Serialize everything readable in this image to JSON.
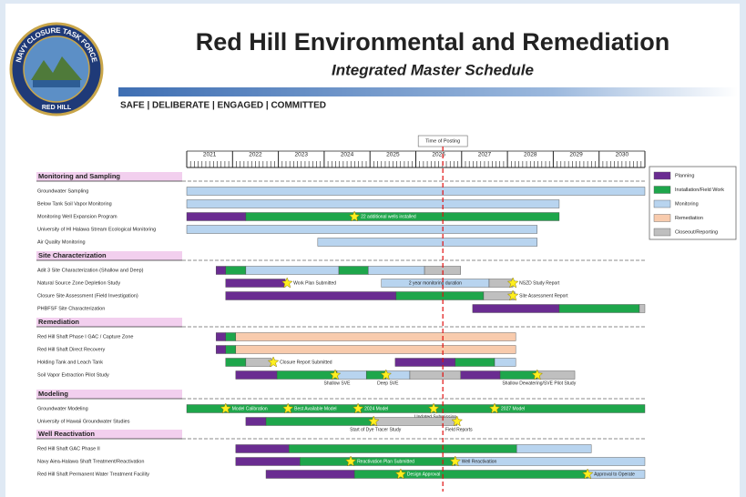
{
  "header": {
    "title": "Red Hill Environmental and Remediation",
    "subtitle": "Integrated Master Schedule",
    "tagline": "SAFE | DELIBERATE | ENGAGED | COMMITTED",
    "logo_top": "NAVY CLOSURE TASK FORCE",
    "logo_bottom": "RED HILL"
  },
  "timeline": {
    "years": [
      2021,
      2022,
      2023,
      2024,
      2025,
      2026,
      2027,
      2028,
      2029,
      2030
    ],
    "range": [
      2021,
      2031
    ],
    "time_of_posting": {
      "label": "Time of Posting",
      "value": 2026.59
    }
  },
  "legend": [
    {
      "label": "Planning",
      "color": "#6a2c91"
    },
    {
      "label": "Installation/Field Work",
      "color": "#1ea64b"
    },
    {
      "label": "Monitoring",
      "color": "#b8d4ef"
    },
    {
      "label": "Remediation",
      "color": "#f8cbad"
    },
    {
      "label": "Closeout/Reporting",
      "color": "#bfbfbf"
    }
  ],
  "sections": [
    {
      "title": "Monitoring and Sampling",
      "rows": [
        {
          "label": "Groundwater Sampling",
          "bars": [
            {
              "type": "Monitoring",
              "start": 2021.0,
              "end": 2031.0
            }
          ],
          "milestones": []
        },
        {
          "label": "Below Tank Soil Vapor Monitoring",
          "bars": [
            {
              "type": "Monitoring",
              "start": 2021.0,
              "end": 2029.13
            }
          ],
          "milestones": []
        },
        {
          "label": "Monitoring Well Expansion Program",
          "bars": [
            {
              "type": "Planning",
              "start": 2021.0,
              "end": 2022.29
            },
            {
              "type": "Installation/Field Work",
              "start": 2022.29,
              "end": 2029.13
            }
          ],
          "milestones": [
            {
              "t": 2024.66,
              "label": "22 additional wells installed"
            }
          ]
        },
        {
          "label": "University of HI Halawa Stream Ecological Monitoring",
          "bars": [
            {
              "type": "Monitoring",
              "start": 2021.0,
              "end": 2028.65
            }
          ],
          "milestones": []
        },
        {
          "label": "Air Quality Monitoring",
          "bars": [
            {
              "type": "Monitoring",
              "start": 2023.86,
              "end": 2028.65
            }
          ],
          "milestones": []
        }
      ]
    },
    {
      "title": "Site Characterization",
      "rows": [
        {
          "label": "Adit 3 Site Characterization (Shallow and Deep)",
          "bars": [
            {
              "type": "Planning",
              "start": 2021.64,
              "end": 2021.85
            },
            {
              "type": "Installation/Field Work",
              "start": 2021.85,
              "end": 2022.29
            },
            {
              "type": "Monitoring",
              "start": 2022.29,
              "end": 2024.32
            },
            {
              "type": "Installation/Field Work",
              "start": 2024.32,
              "end": 2024.96
            },
            {
              "type": "Monitoring",
              "start": 2024.96,
              "end": 2026.19
            },
            {
              "type": "Closeout/Reporting",
              "start": 2026.19,
              "end": 2026.98
            }
          ],
          "milestones": []
        },
        {
          "label": "Natural Source Zone Depletion Study",
          "bars": [
            {
              "type": "Planning",
              "start": 2021.85,
              "end": 2023.15
            },
            {
              "type": "Monitoring",
              "start": 2025.25,
              "end": 2027.6,
              "label": "2 year monitoring duration"
            },
            {
              "type": "Closeout/Reporting",
              "start": 2027.6,
              "end": 2028.12
            }
          ],
          "milestones": [
            {
              "t": 2023.19,
              "label": "Work Plan Submitted"
            },
            {
              "t": 2028.12,
              "label": "NSZD Study Report"
            }
          ]
        },
        {
          "label": "Closure Site Assessment (Field Investigation)",
          "bars": [
            {
              "type": "Planning",
              "start": 2021.85,
              "end": 2025.57
            },
            {
              "type": "Installation/Field Work",
              "start": 2025.57,
              "end": 2027.48
            },
            {
              "type": "Closeout/Reporting",
              "start": 2027.48,
              "end": 2028.16
            }
          ],
          "milestones": [
            {
              "t": 2028.12,
              "label": "Site Assessment Report"
            }
          ]
        },
        {
          "label": "PHBFSF Site Characterization",
          "bars": [
            {
              "type": "Planning",
              "start": 2027.24,
              "end": 2029.13
            },
            {
              "type": "Installation/Field Work",
              "start": 2029.13,
              "end": 2030.88
            },
            {
              "type": "Closeout/Reporting",
              "start": 2030.88,
              "end": 2031.0
            }
          ],
          "milestones": []
        }
      ]
    },
    {
      "title": "Remediation",
      "rows": [
        {
          "label": "Red Hill Shaft Phase I GAC / Capture Zone",
          "bars": [
            {
              "type": "Planning",
              "start": 2021.64,
              "end": 2021.85
            },
            {
              "type": "Installation/Field Work",
              "start": 2021.85,
              "end": 2022.07
            },
            {
              "type": "Remediation",
              "start": 2022.07,
              "end": 2028.18
            }
          ],
          "milestones": []
        },
        {
          "label": "Red Hill Shaft Direct Recovery",
          "bars": [
            {
              "type": "Planning",
              "start": 2021.64,
              "end": 2021.85
            },
            {
              "type": "Installation/Field Work",
              "start": 2021.85,
              "end": 2022.07
            },
            {
              "type": "Remediation",
              "start": 2022.07,
              "end": 2028.18
            }
          ],
          "milestones": []
        },
        {
          "label": "Holding Tank and Leach Tank",
          "bars": [
            {
              "type": "Installation/Field Work",
              "start": 2021.85,
              "end": 2022.29
            },
            {
              "type": "Closeout/Reporting",
              "start": 2022.29,
              "end": 2022.85
            },
            {
              "type": "Planning",
              "start": 2025.55,
              "end": 2026.86
            },
            {
              "type": "Installation/Field Work",
              "start": 2026.86,
              "end": 2027.72
            },
            {
              "type": "Monitoring",
              "start": 2027.72,
              "end": 2028.18
            }
          ],
          "milestones": [
            {
              "t": 2022.89,
              "label": "Closure Report Submitted"
            }
          ]
        },
        {
          "label": "Soil Vapor Extraction Pilot Study",
          "bars": [
            {
              "type": "Planning",
              "start": 2022.07,
              "end": 2022.97
            },
            {
              "type": "Installation/Field Work",
              "start": 2022.97,
              "end": 2024.28
            },
            {
              "type": "Monitoring",
              "start": 2024.28,
              "end": 2024.92
            },
            {
              "type": "Installation/Field Work",
              "start": 2024.92,
              "end": 2025.35
            },
            {
              "type": "Monitoring",
              "start": 2025.35,
              "end": 2025.87
            },
            {
              "type": "Closeout/Reporting",
              "start": 2025.87,
              "end": 2026.98
            },
            {
              "type": "Planning",
              "start": 2026.98,
              "end": 2027.84
            },
            {
              "type": "Installation/Field Work",
              "start": 2027.84,
              "end": 2028.65
            },
            {
              "type": "Closeout/Reporting",
              "start": 2028.65,
              "end": 2029.47
            }
          ],
          "milestones": [
            {
              "t": 2024.24,
              "label": "Shallow SVE"
            },
            {
              "t": 2025.35,
              "label": "Deep SVE"
            },
            {
              "t": 2028.65,
              "label": "Shallow Dewatering/SVE Pilot Study"
            }
          ]
        }
      ]
    },
    {
      "title": "Modeling",
      "rows": [
        {
          "label": "Groundwater Modeling",
          "bars": [
            {
              "type": "Installation/Field Work",
              "start": 2021.0,
              "end": 2031.0
            }
          ],
          "milestones": [
            {
              "t": 2021.85,
              "label": "Model Calibration"
            },
            {
              "t": 2023.21,
              "label": "Best Available Model"
            },
            {
              "t": 2024.74,
              "label": "2024 Model"
            },
            {
              "t": 2026.39,
              "label": "Updated Submission"
            },
            {
              "t": 2027.72,
              "label": "2027 Model"
            }
          ]
        },
        {
          "label": "University of Hawaii Groundwater Studies",
          "bars": [
            {
              "type": "Planning",
              "start": 2022.29,
              "end": 2022.73
            },
            {
              "type": "Installation/Field Work",
              "start": 2022.73,
              "end": 2025.08
            },
            {
              "type": "Closeout/Reporting",
              "start": 2025.08,
              "end": 2026.9
            }
          ],
          "milestones": [
            {
              "t": 2025.08,
              "label": "Start of Dye Tracer Study"
            },
            {
              "t": 2026.9,
              "label": "Field Reports"
            }
          ]
        }
      ]
    },
    {
      "title": "Well Reactivation",
      "rows": [
        {
          "label": "Red Hill Shaft GAC Phase II",
          "bars": [
            {
              "type": "Planning",
              "start": 2022.07,
              "end": 2023.23
            },
            {
              "type": "Installation/Field Work",
              "start": 2023.23,
              "end": 2028.2
            },
            {
              "type": "Monitoring",
              "start": 2028.2,
              "end": 2029.83
            }
          ],
          "milestones": []
        },
        {
          "label": "Navy Aiea-Halawa Shaft Treatment/Reactivation",
          "bars": [
            {
              "type": "Planning",
              "start": 2022.07,
              "end": 2023.47
            },
            {
              "type": "Installation/Field Work",
              "start": 2023.47,
              "end": 2026.86
            },
            {
              "type": "Monitoring",
              "start": 2026.86,
              "end": 2031.0
            }
          ],
          "milestones": [
            {
              "t": 2024.58,
              "label": "Reactivation Plan Submitted"
            },
            {
              "t": 2026.86,
              "label": "Well Reactivation"
            }
          ]
        },
        {
          "label": "Red Hill Shaft Permanent Water Treatment Facility",
          "bars": [
            {
              "type": "Planning",
              "start": 2022.73,
              "end": 2024.66
            },
            {
              "type": "Installation/Field Work",
              "start": 2024.66,
              "end": 2029.75
            },
            {
              "type": "Monitoring",
              "start": 2029.75,
              "end": 2031.0
            }
          ],
          "milestones": [
            {
              "t": 2025.67,
              "label": "Design Approval"
            },
            {
              "t": 2029.75,
              "label": "Approval to Operate"
            }
          ]
        }
      ]
    }
  ]
}
